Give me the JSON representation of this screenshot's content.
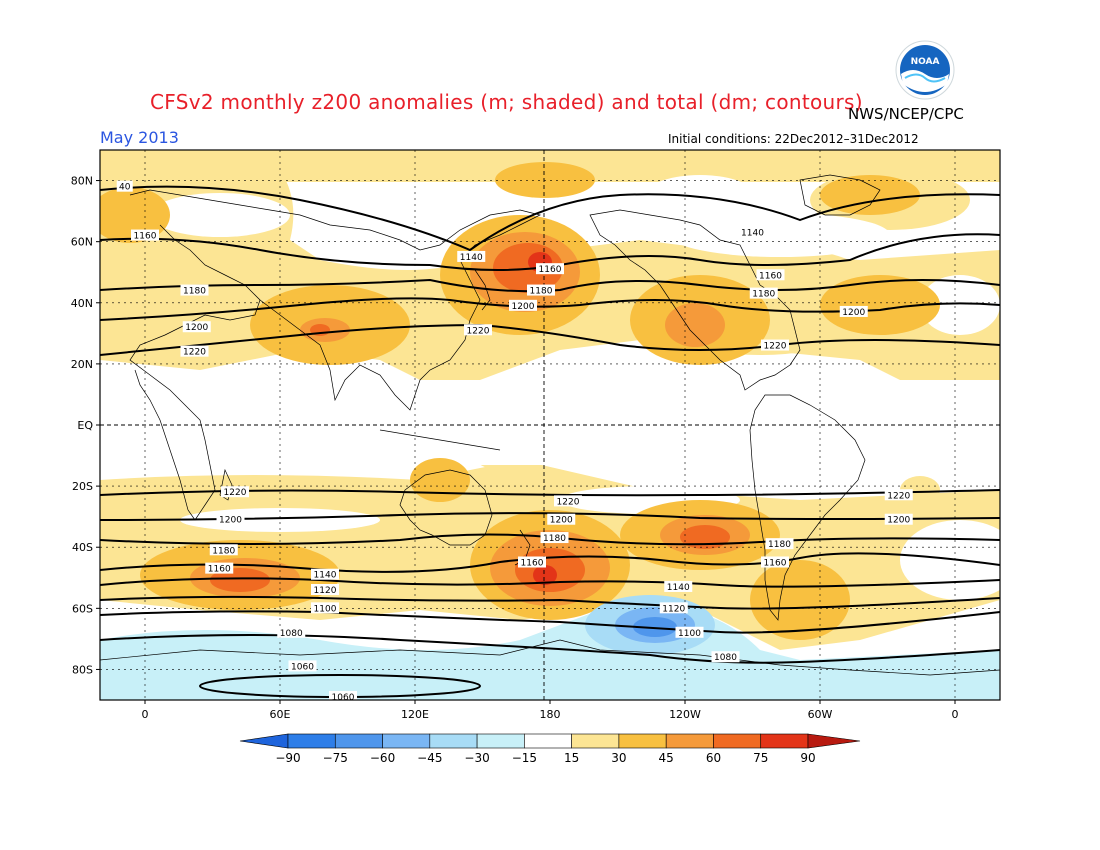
{
  "header": {
    "title": "CFSv2 monthly z200 anomalies (m; shaded) and total (dm; contours)",
    "agency": "NWS/NCEP/CPC",
    "period": "May 2013",
    "initial_conditions": "Initial conditions: 22Dec2012–31Dec2012"
  },
  "logo": {
    "text": "NOAA",
    "colors": {
      "outer": "#1565c0",
      "inner": "#ffffff",
      "accent": "#4fc3f7"
    }
  },
  "map": {
    "lat_labels": [
      "80N",
      "60N",
      "40N",
      "20N",
      "EQ",
      "20S",
      "40S",
      "60S",
      "80S"
    ],
    "lat_values": [
      80,
      60,
      40,
      20,
      0,
      -20,
      -40,
      -60,
      -80
    ],
    "lon_labels": [
      "0",
      "60E",
      "120E",
      "180",
      "120W",
      "60W",
      "0"
    ],
    "lon_values": [
      0,
      60,
      120,
      180,
      240,
      300,
      360
    ],
    "contour_labels": [
      {
        "text": "1140",
        "lon": 145,
        "lat": 55
      },
      {
        "text": "1160",
        "lon": 180,
        "lat": 51
      },
      {
        "text": "1180",
        "lon": 176,
        "lat": 44
      },
      {
        "text": "1200",
        "lon": 168,
        "lat": 39
      },
      {
        "text": "1220",
        "lon": 148,
        "lat": 31
      },
      {
        "text": "1160",
        "lon": 0,
        "lat": 62
      },
      {
        "text": "1180",
        "lon": 22,
        "lat": 44
      },
      {
        "text": "1200",
        "lon": 23,
        "lat": 32
      },
      {
        "text": "1220",
        "lon": 22,
        "lat": 24
      },
      {
        "text": "40",
        "lon": -9,
        "lat": 78
      },
      {
        "text": "1140",
        "lon": 270,
        "lat": 63
      },
      {
        "text": "1160",
        "lon": 278,
        "lat": 49
      },
      {
        "text": "1180",
        "lon": 275,
        "lat": 43
      },
      {
        "text": "1200",
        "lon": 315,
        "lat": 37
      },
      {
        "text": "1220",
        "lon": 280,
        "lat": 26
      },
      {
        "text": "1220",
        "lon": 40,
        "lat": -22
      },
      {
        "text": "1200",
        "lon": 38,
        "lat": -31
      },
      {
        "text": "1180",
        "lon": 35,
        "lat": -41
      },
      {
        "text": "1160",
        "lon": 33,
        "lat": -47
      },
      {
        "text": "1140",
        "lon": 80,
        "lat": -49
      },
      {
        "text": "1120",
        "lon": 80,
        "lat": -54
      },
      {
        "text": "1100",
        "lon": 80,
        "lat": -60
      },
      {
        "text": "1080",
        "lon": 65,
        "lat": -68
      },
      {
        "text": "1060",
        "lon": 70,
        "lat": -79
      },
      {
        "text": "1060",
        "lon": 88,
        "lat": -89
      },
      {
        "text": "1220",
        "lon": 188,
        "lat": -25
      },
      {
        "text": "1200",
        "lon": 185,
        "lat": -31
      },
      {
        "text": "1180",
        "lon": 182,
        "lat": -37
      },
      {
        "text": "1160",
        "lon": 172,
        "lat": -45
      },
      {
        "text": "1140",
        "lon": 237,
        "lat": -53
      },
      {
        "text": "1120",
        "lon": 235,
        "lat": -60
      },
      {
        "text": "1100",
        "lon": 242,
        "lat": -68
      },
      {
        "text": "1080",
        "lon": 258,
        "lat": -76
      },
      {
        "text": "1180",
        "lon": 282,
        "lat": -39
      },
      {
        "text": "1160",
        "lon": 280,
        "lat": -45
      },
      {
        "text": "1220",
        "lon": 335,
        "lat": -23
      },
      {
        "text": "1200",
        "lon": 335,
        "lat": -31
      }
    ]
  },
  "colorbar": {
    "labels": [
      "-90",
      "-75",
      "-60",
      "-45",
      "-30",
      "-15",
      "15",
      "30",
      "45",
      "60",
      "75",
      "90"
    ],
    "colors": [
      "#1e64dc",
      "#2e7ee8",
      "#4f96ec",
      "#7ab6f4",
      "#a8dcf6",
      "#c8f0f8",
      "#ffffff",
      "#fce594",
      "#f8c040",
      "#f59a3a",
      "#f06a22",
      "#e33418",
      "#b81a10"
    ]
  },
  "anomaly_colors": {
    "c15": "#fce594",
    "c30": "#f8c040",
    "c45": "#f59a3a",
    "c60": "#f06a22",
    "c75": "#e33418",
    "n15": "#c8f0f8",
    "n30": "#a8dcf6",
    "n45": "#7ab6f4",
    "n60": "#4f96ec"
  }
}
